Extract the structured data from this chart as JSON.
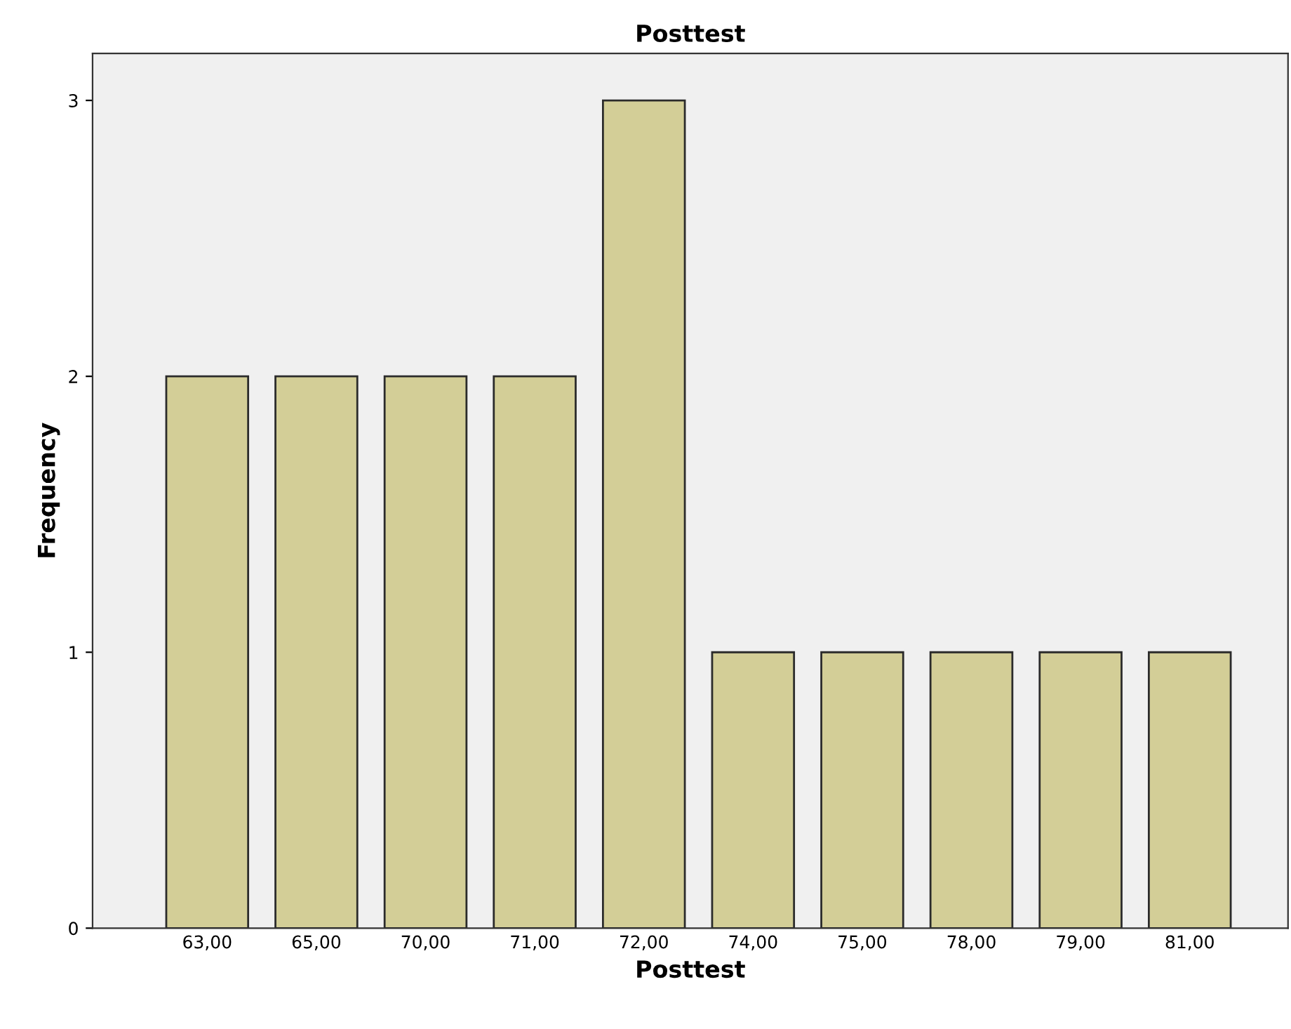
{
  "chart_data": {
    "type": "bar",
    "title": "Posttest",
    "xlabel": "Posttest",
    "ylabel": "Frequency",
    "categories": [
      "63,00",
      "65,00",
      "70,00",
      "71,00",
      "72,00",
      "74,00",
      "75,00",
      "78,00",
      "79,00",
      "81,00"
    ],
    "values": [
      2,
      2,
      2,
      2,
      3,
      1,
      1,
      1,
      1,
      1
    ],
    "color": "#d3ce97",
    "ylim": [
      0,
      3.17
    ],
    "yticks": [
      0,
      1,
      2,
      3
    ],
    "grid": false,
    "legend": false
  }
}
